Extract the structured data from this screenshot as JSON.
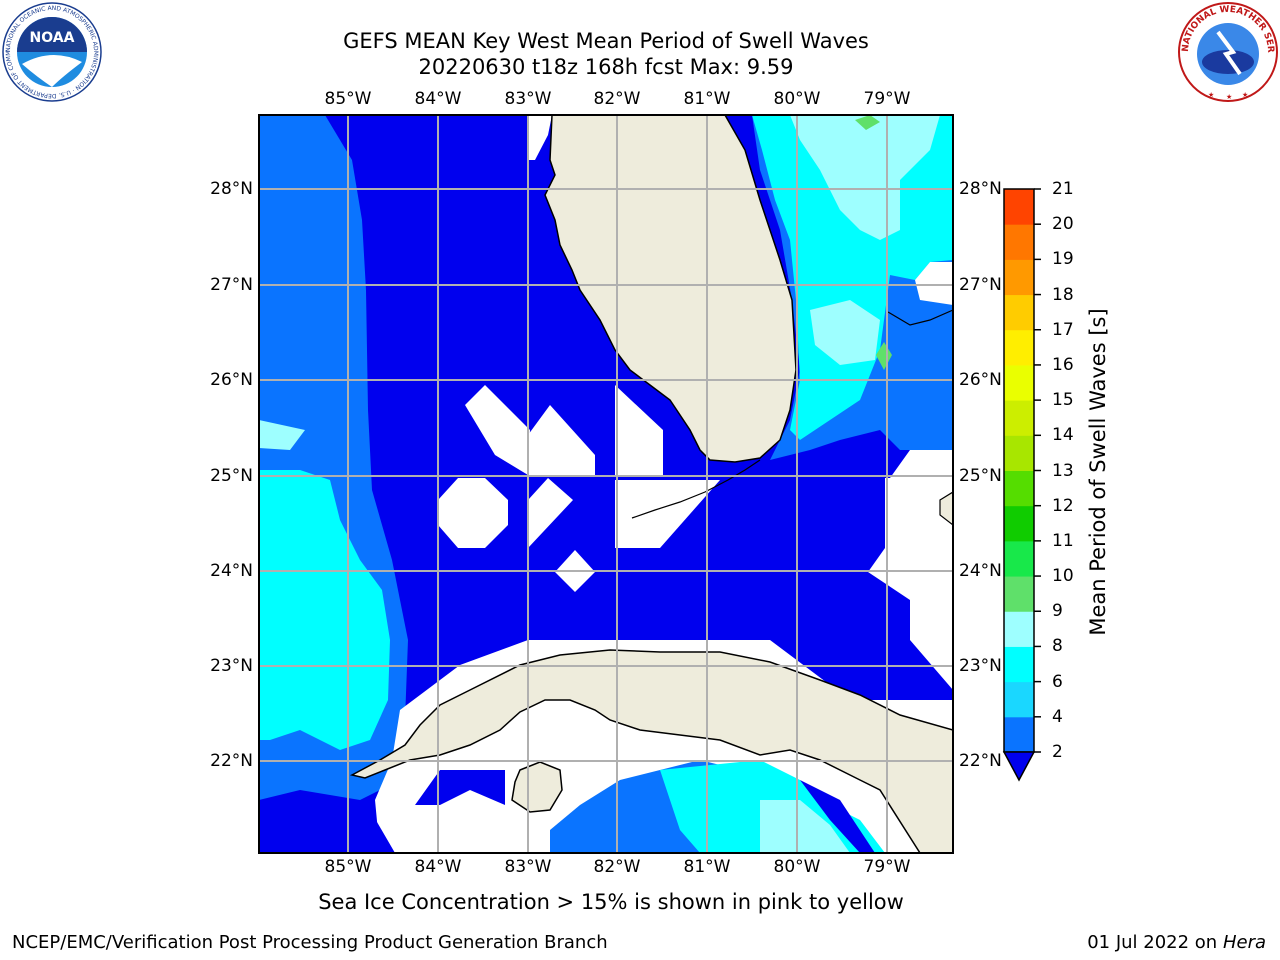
{
  "title_line1": "GEFS MEAN Key West Mean Period of Swell Waves",
  "title_line2": "20220630 t18z 168h fcst   Max: 9.59",
  "longitude_labels": [
    "85°W",
    "84°W",
    "83°W",
    "82°W",
    "81°W",
    "80°W",
    "79°W"
  ],
  "latitude_labels": [
    "28°N",
    "27°N",
    "26°N",
    "25°N",
    "24°N",
    "23°N",
    "22°N"
  ],
  "colorbar": {
    "title": "Mean Period of Swell Waves [s]",
    "ticks": [
      "2",
      "4",
      "6",
      "8",
      "9",
      "10",
      "11",
      "12",
      "13",
      "14",
      "15",
      "16",
      "17",
      "18",
      "19",
      "20",
      "21"
    ],
    "colors": [
      "#0a74ff",
      "#1ad7ff",
      "#00ffff",
      "#9effff",
      "#5fe06a",
      "#18e84a",
      "#10cc00",
      "#55dd00",
      "#a8e600",
      "#ccee00",
      "#eaff00",
      "#ffee00",
      "#ffcc00",
      "#ff9900",
      "#ff7700",
      "#ff4400",
      "#ff1100"
    ],
    "extend_color": "#0000ee"
  },
  "note": "Sea Ice Concentration > 15% is shown in pink to yellow",
  "footer_left": "NCEP/EMC/Verification Post Processing Product Generation Branch",
  "footer_date": "01 Jul 2022 on ",
  "footer_host": "Hera",
  "logos": {
    "noaa_text": "NOAA",
    "noaa_ring": "NATIONAL OCEANIC AND ATMOSPHERIC ADMINISTRATION · U.S. DEPARTMENT OF COMMERCE",
    "nws_ring": "NATIONAL WEATHER SERVICE"
  },
  "colors": {
    "land": "#eeecdc",
    "deep_blue": "#0000ee",
    "mid_blue": "#0a74ff",
    "cyan": "#00ffff",
    "light_cyan": "#9effff",
    "grid": "#b0b0b0"
  }
}
